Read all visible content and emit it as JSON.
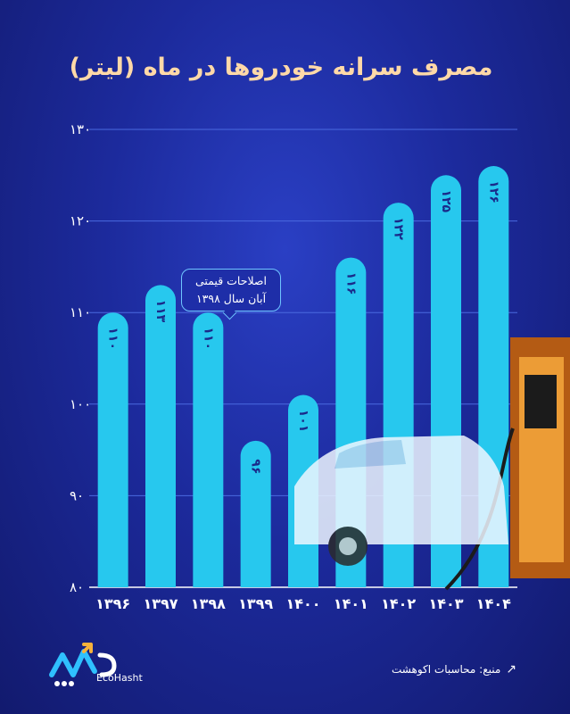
{
  "chart_data": {
    "type": "bar",
    "title": "مصرف سرانه خودروها در ماه (لیتر)",
    "categories": [
      "۱۳۹۶",
      "۱۳۹۷",
      "۱۳۹۸",
      "۱۳۹۹",
      "۱۴۰۰",
      "۱۴۰۱",
      "۱۴۰۲",
      "۱۴۰۳",
      "۱۴۰۴"
    ],
    "values": [
      110,
      113,
      110,
      96,
      101,
      116,
      122,
      125,
      126
    ],
    "value_labels": [
      "۱۱۰",
      "۱۱۳",
      "۱۱۰",
      "۹۶",
      "۱۰۱",
      "۱۱۶",
      "۱۲۲",
      "۱۲۵",
      "۱۲۶"
    ],
    "yticks": [
      80,
      90,
      100,
      110,
      120,
      130
    ],
    "ytick_labels": [
      "۸۰",
      "۹۰",
      "۱۰۰",
      "۱۱۰",
      "۱۲۰",
      "۱۳۰"
    ],
    "ylim": [
      80,
      130
    ],
    "grid": true,
    "bar_color": "#27c8ee",
    "annotation": {
      "category": "۱۳۹۸",
      "line1": "اصلاحات قیمتی",
      "line2": "آبان سال ۱۳۹۸"
    }
  },
  "footer": {
    "brand": "EcoHasht",
    "source_label": "منبع: محاسبات اکوهشت",
    "source_icon": "arrow-icon"
  }
}
